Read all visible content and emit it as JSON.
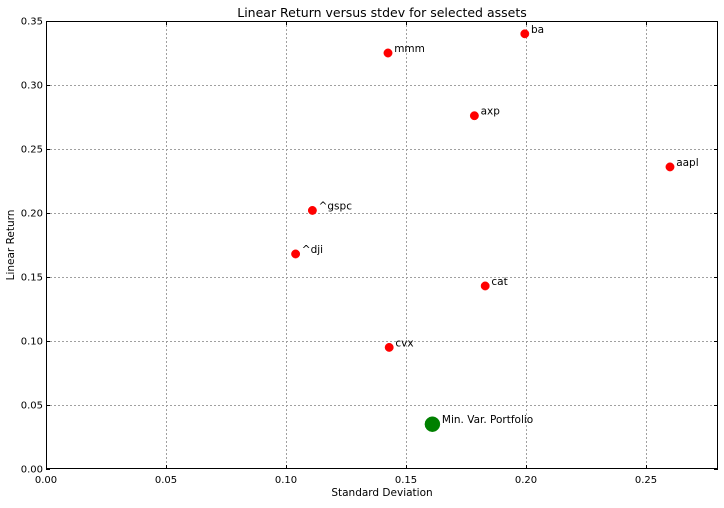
{
  "chart_data": {
    "type": "scatter",
    "title": "Linear Return versus stdev for selected assets",
    "xlabel": "Standard Deviation",
    "ylabel": "Linear Return",
    "xlim": [
      0.0,
      0.28
    ],
    "ylim": [
      0.0,
      0.35
    ],
    "xticks": [
      "0.00",
      "0.05",
      "0.10",
      "0.15",
      "0.20",
      "0.25"
    ],
    "xtick_values": [
      0.0,
      0.05,
      0.1,
      0.15,
      0.2,
      0.25
    ],
    "yticks": [
      "0.00",
      "0.05",
      "0.10",
      "0.15",
      "0.20",
      "0.25",
      "0.30",
      "0.35"
    ],
    "ytick_values": [
      0.0,
      0.05,
      0.1,
      0.15,
      0.2,
      0.25,
      0.3,
      0.35
    ],
    "grid": true,
    "series": [
      {
        "color": "#ff0000",
        "points": [
          {
            "label": "mmm",
            "x": 0.1425,
            "y": 0.325
          },
          {
            "label": "ba",
            "x": 0.1995,
            "y": 0.34
          },
          {
            "label": "axp",
            "x": 0.1785,
            "y": 0.276
          },
          {
            "label": "aapl",
            "x": 0.26,
            "y": 0.236
          },
          {
            "label": "^gspc",
            "x": 0.111,
            "y": 0.202
          },
          {
            "label": "^dji",
            "x": 0.104,
            "y": 0.168
          },
          {
            "label": "cat",
            "x": 0.183,
            "y": 0.143
          },
          {
            "label": "cvx",
            "x": 0.143,
            "y": 0.095
          }
        ]
      },
      {
        "color": "#008000",
        "points": [
          {
            "label": "Min. Var. Portfolio",
            "x": 0.161,
            "y": 0.035
          }
        ]
      }
    ]
  }
}
